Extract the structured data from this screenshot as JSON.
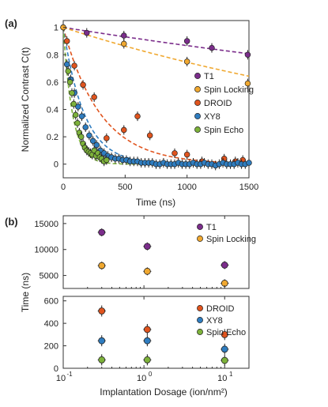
{
  "chart_data": [
    {
      "panel": "(a)",
      "type": "scatter",
      "xlabel": "Time (ns)",
      "ylabel": "Normalized Contrast C(t)",
      "xlim": [
        0,
        1500
      ],
      "ylim": [
        -0.1,
        1.05
      ],
      "xticks": [
        "0",
        "500",
        "1000",
        "1500"
      ],
      "yticks": [
        "0",
        "0.2",
        "0.4",
        "0.6",
        "0.8",
        "1"
      ],
      "legend_position": "right",
      "series": [
        {
          "name": "T1",
          "color": "#7B2D8B",
          "points": [
            [
              0,
              1.0
            ],
            [
              190,
              0.96
            ],
            [
              490,
              0.94
            ],
            [
              1000,
              0.9
            ],
            [
              1200,
              0.85
            ],
            [
              1490,
              0.8
            ]
          ],
          "fit": {
            "start": 1.0,
            "tau": 7000
          }
        },
        {
          "name": "Spin Locking",
          "color": "#F0A830",
          "points": [
            [
              0,
              1.0
            ],
            [
              490,
              0.88
            ],
            [
              1000,
              0.75
            ],
            [
              1490,
              0.59
            ]
          ],
          "fit": {
            "start": 1.0,
            "tau": 3400
          }
        },
        {
          "name": "DROID",
          "color": "#E0541E",
          "points": [
            [
              30,
              0.9
            ],
            [
              90,
              0.72
            ],
            [
              160,
              0.58
            ],
            [
              250,
              0.49
            ],
            [
              350,
              0.19
            ],
            [
              490,
              0.25
            ],
            [
              600,
              0.35
            ],
            [
              700,
              0.21
            ],
            [
              900,
              0.08
            ],
            [
              1000,
              0.07
            ],
            [
              1120,
              0.02
            ],
            [
              1300,
              0.04
            ],
            [
              1390,
              0.02
            ],
            [
              1450,
              0.03
            ]
          ],
          "fit": {
            "start": 1.0,
            "tau": 300
          }
        },
        {
          "name": "XY8",
          "color": "#2F7DC0",
          "points": [
            [
              30,
              0.73
            ],
            [
              60,
              0.62
            ],
            [
              90,
              0.52
            ],
            [
              120,
              0.42
            ],
            [
              150,
              0.35
            ],
            [
              180,
              0.27
            ],
            [
              210,
              0.21
            ],
            [
              240,
              0.17
            ],
            [
              270,
              0.14
            ],
            [
              300,
              0.1
            ],
            [
              330,
              0.08
            ],
            [
              360,
              0.06
            ],
            [
              390,
              0.05
            ],
            [
              420,
              0.04
            ],
            [
              450,
              0.04
            ],
            [
              480,
              0.03
            ],
            [
              510,
              0.03
            ],
            [
              540,
              0.02
            ],
            [
              570,
              0.02
            ],
            [
              600,
              0.02
            ],
            [
              630,
              0.01
            ],
            [
              660,
              0.01
            ],
            [
              690,
              0.01
            ],
            [
              720,
              0.01
            ],
            [
              750,
              0.0
            ],
            [
              780,
              0.0
            ],
            [
              810,
              0.01
            ],
            [
              840,
              0.0
            ],
            [
              870,
              0.0
            ],
            [
              900,
              0.0
            ],
            [
              930,
              0.01
            ],
            [
              960,
              0.0
            ],
            [
              990,
              0.0
            ],
            [
              1020,
              0.0
            ],
            [
              1050,
              0.01
            ],
            [
              1080,
              0.0
            ],
            [
              1110,
              0.0
            ],
            [
              1140,
              0.01
            ],
            [
              1170,
              0.0
            ],
            [
              1200,
              0.0
            ],
            [
              1230,
              -0.01
            ],
            [
              1260,
              0.0
            ],
            [
              1290,
              0.01
            ],
            [
              1320,
              0.0
            ],
            [
              1350,
              0.0
            ],
            [
              1380,
              0.0
            ],
            [
              1410,
              0.01
            ],
            [
              1440,
              0.0
            ],
            [
              1470,
              0.0
            ],
            [
              1500,
              0.01
            ]
          ],
          "fit": {
            "start": 1.0,
            "tau": 170
          }
        },
        {
          "name": "Spin Echo",
          "color": "#7DB23A",
          "points": [
            [
              40,
              0.68
            ],
            [
              55,
              0.6
            ],
            [
              70,
              0.52
            ],
            [
              85,
              0.44
            ],
            [
              100,
              0.36
            ],
            [
              115,
              0.3
            ],
            [
              130,
              0.23
            ],
            [
              145,
              0.2
            ],
            [
              160,
              0.15
            ],
            [
              175,
              0.12
            ],
            [
              190,
              0.1
            ],
            [
              205,
              0.09
            ],
            [
              220,
              0.08
            ],
            [
              235,
              0.07
            ],
            [
              250,
              0.1
            ],
            [
              265,
              0.06
            ],
            [
              280,
              0.08
            ],
            [
              295,
              0.05
            ],
            [
              310,
              0.04
            ],
            [
              330,
              0.02
            ],
            [
              350,
              0.03
            ]
          ],
          "fit": {
            "start": 1.0,
            "tau": 75
          }
        }
      ]
    },
    {
      "panel": "(b)",
      "type": "scatter",
      "xlabel": "Implantation Dosage (ion/nm²)",
      "ylabel": "Time (ns)",
      "xscale": "log",
      "xlim": [
        0.1,
        20
      ],
      "xticks": [
        "10",
        "10",
        "10"
      ],
      "xtick_exponents": [
        "-1",
        "0",
        "1"
      ],
      "upper": {
        "ylim": [
          2500,
          16500
        ],
        "yticks": [
          "5000",
          "10000",
          "15000"
        ],
        "series": [
          {
            "name": "T1",
            "color": "#7B2D8B",
            "x": [
              0.3,
              1.1,
              10
            ],
            "y": [
              13300,
              10600,
              7000
            ]
          },
          {
            "name": "Spin Locking",
            "color": "#F0A830",
            "x": [
              0.3,
              1.1,
              10
            ],
            "y": [
              6900,
              5800,
              3500
            ]
          }
        ]
      },
      "lower": {
        "ylim": [
          0,
          640
        ],
        "yticks": [
          "0",
          "200",
          "400",
          "600"
        ],
        "series": [
          {
            "name": "DROID",
            "color": "#E0541E",
            "x": [
              0.3,
              1.1,
              10
            ],
            "y": [
              510,
              345,
              300
            ]
          },
          {
            "name": "XY8",
            "color": "#2F7DC0",
            "x": [
              0.3,
              1.1,
              10
            ],
            "y": [
              245,
              245,
              170
            ]
          },
          {
            "name": "Spin Echo",
            "color": "#7DB23A",
            "x": [
              0.3,
              1.1,
              10
            ],
            "y": [
              75,
              75,
              70
            ]
          }
        ]
      }
    }
  ]
}
